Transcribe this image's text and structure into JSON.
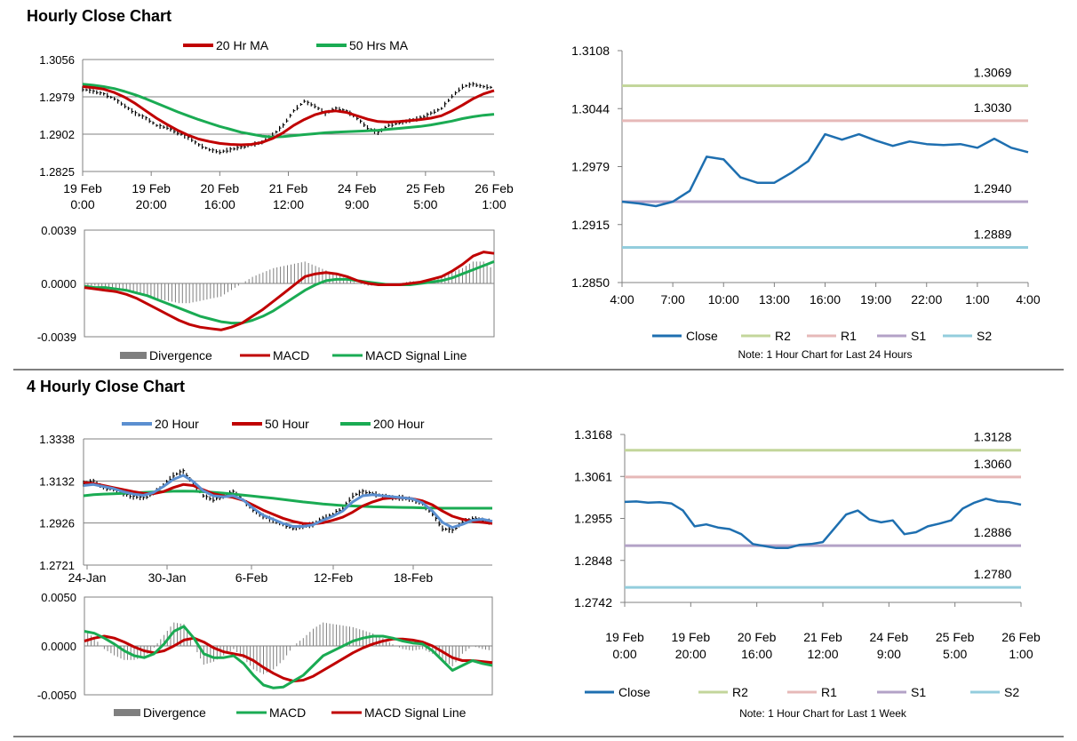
{
  "colors": {
    "black": "#000000",
    "red": "#c00000",
    "green": "#1aab53",
    "blue": "#1e6fb0",
    "lightblue": "#5b8fd0",
    "grey": "#7f7f7f",
    "r2": "#c3d69b",
    "r1": "#e6b9b8",
    "s1": "#b3a2c7",
    "s2": "#93cddd",
    "divider": "#7f7f7f"
  },
  "sections": {
    "top": {
      "title": "Hourly Close Chart"
    },
    "bottom": {
      "title": "4 Hourly Close Chart"
    }
  },
  "chart_data": [
    {
      "id": "hourly-price",
      "type": "line",
      "title": "Hourly Close Chart",
      "ylim": [
        1.2825,
        1.3056
      ],
      "yticks": [
        "1.3056",
        "1.2979",
        "1.2902",
        "1.2825"
      ],
      "xticks": [
        [
          "19 Feb",
          "0:00"
        ],
        [
          "19 Feb",
          "20:00"
        ],
        [
          "20 Feb",
          "16:00"
        ],
        [
          "21 Feb",
          "12:00"
        ],
        [
          "24 Feb",
          "9:00"
        ],
        [
          "25 Feb",
          "5:00"
        ],
        [
          "26 Feb",
          "1:00"
        ]
      ],
      "legend": [
        "20 Hr MA",
        "50 Hrs MA"
      ],
      "legend_position": "top",
      "price": [
        1.2995,
        1.299,
        1.2985,
        1.2975,
        1.296,
        1.2945,
        1.2935,
        1.292,
        1.2915,
        1.2905,
        1.2895,
        1.288,
        1.287,
        1.2865,
        1.287,
        1.2875,
        1.288,
        1.2885,
        1.29,
        1.292,
        1.295,
        1.297,
        1.296,
        1.2945,
        1.2955,
        1.295,
        1.2935,
        1.2915,
        1.2905,
        1.292,
        1.2925,
        1.293,
        1.2935,
        1.2945,
        1.2955,
        1.298,
        1.3,
        1.3005,
        1.3,
        1.2998
      ],
      "ma20": [
        1.3,
        1.2998,
        1.2995,
        1.2988,
        1.2978,
        1.2965,
        1.295,
        1.2935,
        1.2922,
        1.291,
        1.29,
        1.2892,
        1.2887,
        1.2883,
        1.2881,
        1.288,
        1.2881,
        1.2885,
        1.2893,
        1.2905,
        1.292,
        1.2932,
        1.2942,
        1.2948,
        1.295,
        1.2947,
        1.294,
        1.2933,
        1.2928,
        1.2927,
        1.2928,
        1.293,
        1.2932,
        1.2935,
        1.294,
        1.295,
        1.2962,
        1.2975,
        1.2985,
        1.2992
      ],
      "ma50": [
        1.3005,
        1.3003,
        1.3,
        1.2996,
        1.299,
        1.2983,
        1.2975,
        1.2966,
        1.2957,
        1.2948,
        1.294,
        1.2932,
        1.2925,
        1.2918,
        1.2912,
        1.2906,
        1.2902,
        1.2898,
        1.2896,
        1.2897,
        1.2899,
        1.2901,
        1.2903,
        1.2905,
        1.2906,
        1.2907,
        1.2908,
        1.2909,
        1.291,
        1.2912,
        1.2914,
        1.2916,
        1.2918,
        1.2921,
        1.2925,
        1.2929,
        1.2934,
        1.2938,
        1.2941,
        1.2943
      ]
    },
    {
      "id": "hourly-macd",
      "type": "line",
      "ylim": [
        -0.0039,
        0.0039
      ],
      "yticks": [
        "0.0039",
        "0.0000",
        "-0.0039"
      ],
      "legend": [
        "Divergence",
        "MACD",
        "MACD Signal Line"
      ],
      "legend_position": "bottom",
      "macd": [
        -0.0003,
        -0.0004,
        -0.0005,
        -0.0006,
        -0.0008,
        -0.0011,
        -0.0015,
        -0.0019,
        -0.0023,
        -0.0027,
        -0.003,
        -0.0032,
        -0.0033,
        -0.0034,
        -0.0032,
        -0.0029,
        -0.0024,
        -0.0019,
        -0.0013,
        -0.0007,
        -0.0001,
        0.0005,
        0.0007,
        0.0008,
        0.0007,
        0.0005,
        0.0002,
        0.0,
        -0.0001,
        -0.0001,
        -0.0001,
        0.0,
        0.0001,
        0.0003,
        0.0005,
        0.0009,
        0.0014,
        0.002,
        0.0023,
        0.0022
      ],
      "signal": [
        -0.0002,
        -0.0003,
        -0.0003,
        -0.0004,
        -0.0005,
        -0.0007,
        -0.0009,
        -0.0012,
        -0.0015,
        -0.0018,
        -0.0021,
        -0.0024,
        -0.0026,
        -0.0028,
        -0.0029,
        -0.0029,
        -0.0027,
        -0.0024,
        -0.002,
        -0.0015,
        -0.001,
        -0.0005,
        -0.0001,
        0.0002,
        0.0003,
        0.0003,
        0.0002,
        0.0001,
        0.0,
        -0.0001,
        -0.0001,
        -0.0001,
        0.0,
        0.0001,
        0.0002,
        0.0004,
        0.0007,
        0.001,
        0.0013,
        0.0016
      ]
    },
    {
      "id": "hourly-levels",
      "type": "line",
      "ylim": [
        1.285,
        1.3108
      ],
      "yticks": [
        "1.3108",
        "1.3044",
        "1.2979",
        "1.2915",
        "1.2850"
      ],
      "xticks": [
        "4:00",
        "7:00",
        "10:00",
        "13:00",
        "16:00",
        "19:00",
        "22:00",
        "1:00",
        "4:00"
      ],
      "close": [
        1.294,
        1.2938,
        1.2935,
        1.294,
        1.2952,
        1.299,
        1.2987,
        1.2967,
        1.2961,
        1.2961,
        1.2972,
        1.2985,
        1.3015,
        1.3009,
        1.3015,
        1.3008,
        1.3002,
        1.3007,
        1.3004,
        1.3003,
        1.3004,
        1.3,
        1.301,
        1.3,
        1.2995
      ],
      "levels": [
        {
          "name": "R2",
          "value": 1.3069,
          "label": "1.3069"
        },
        {
          "name": "R1",
          "value": 1.303,
          "label": "1.3030"
        },
        {
          "name": "S1",
          "value": 1.294,
          "label": "1.2940"
        },
        {
          "name": "S2",
          "value": 1.2889,
          "label": "1.2889"
        }
      ],
      "legend": [
        "Close",
        "R2",
        "R1",
        "S1",
        "S2"
      ],
      "note": "Note: 1 Hour Chart for Last 24 Hours"
    },
    {
      "id": "four-hourly-price",
      "type": "line",
      "title": "4 Hourly Close Chart",
      "ylim": [
        1.2721,
        1.3338
      ],
      "yticks": [
        "1.3338",
        "1.3132",
        "1.2926",
        "1.2721"
      ],
      "xticks": [
        "24-Jan",
        "30-Jan",
        "6-Feb",
        "12-Feb",
        "18-Feb"
      ],
      "legend": [
        "20 Hour",
        "50 Hour",
        "200 Hour"
      ],
      "legend_position": "top",
      "price": [
        1.312,
        1.313,
        1.31,
        1.309,
        1.307,
        1.3055,
        1.305,
        1.307,
        1.311,
        1.316,
        1.318,
        1.312,
        1.306,
        1.304,
        1.306,
        1.308,
        1.304,
        1.299,
        1.296,
        1.294,
        1.292,
        1.29,
        1.291,
        1.292,
        1.295,
        1.297,
        1.3,
        1.306,
        1.308,
        1.307,
        1.306,
        1.305,
        1.305,
        1.304,
        1.302,
        1.297,
        1.29,
        1.289,
        1.293,
        1.295,
        1.294,
        1.293
      ],
      "ma20": [
        1.311,
        1.3115,
        1.3105,
        1.3095,
        1.308,
        1.3068,
        1.3062,
        1.3075,
        1.3105,
        1.314,
        1.316,
        1.313,
        1.3085,
        1.306,
        1.3055,
        1.306,
        1.304,
        1.3,
        1.2965,
        1.2945,
        1.2925,
        1.291,
        1.291,
        1.2918,
        1.294,
        1.296,
        1.2985,
        1.303,
        1.306,
        1.3065,
        1.306,
        1.3055,
        1.305,
        1.3045,
        1.3025,
        1.2985,
        1.293,
        1.2905,
        1.292,
        1.294,
        1.2945,
        1.2935
      ],
      "ma50": [
        1.3125,
        1.312,
        1.311,
        1.31,
        1.309,
        1.308,
        1.3072,
        1.307,
        1.308,
        1.31,
        1.3115,
        1.311,
        1.309,
        1.307,
        1.306,
        1.3052,
        1.3038,
        1.3015,
        1.299,
        1.297,
        1.295,
        1.2935,
        1.2925,
        1.2922,
        1.2928,
        1.294,
        1.2955,
        1.298,
        1.301,
        1.303,
        1.3045,
        1.305,
        1.305,
        1.3045,
        1.3035,
        1.3015,
        1.2985,
        1.296,
        1.2945,
        1.2935,
        1.293,
        1.2925
      ],
      "ma200": [
        1.306,
        1.3065,
        1.3068,
        1.307,
        1.3072,
        1.3074,
        1.3076,
        1.3078,
        1.308,
        1.3082,
        1.3083,
        1.3082,
        1.308,
        1.3077,
        1.3073,
        1.3068,
        1.3063,
        1.3058,
        1.3053,
        1.3048,
        1.3042,
        1.3036,
        1.303,
        1.3025,
        1.302,
        1.3016,
        1.3012,
        1.301,
        1.3008,
        1.3006,
        1.3005,
        1.3004,
        1.3003,
        1.3002,
        1.3001,
        1.3,
        1.2999,
        1.2999,
        1.2999,
        1.2999,
        1.2999,
        1.2999
      ]
    },
    {
      "id": "four-hourly-macd",
      "type": "line",
      "ylim": [
        -0.005,
        0.005
      ],
      "yticks": [
        "0.0050",
        "0.0000",
        "-0.0050"
      ],
      "legend": [
        "Divergence",
        "MACD",
        "MACD Signal Line"
      ],
      "legend_position": "bottom",
      "macd": [
        0.0015,
        0.0013,
        0.0008,
        0.0002,
        -0.0005,
        -0.001,
        -0.0012,
        -0.0008,
        0.0002,
        0.0015,
        0.002,
        0.0008,
        -0.0008,
        -0.0012,
        -0.0012,
        -0.001,
        -0.0018,
        -0.003,
        -0.004,
        -0.0043,
        -0.0042,
        -0.0036,
        -0.003,
        -0.002,
        -0.001,
        -0.0005,
        0.0,
        0.0005,
        0.0008,
        0.001,
        0.001,
        0.0008,
        0.0005,
        0.0003,
        0.0002,
        -0.0005,
        -0.0015,
        -0.0025,
        -0.002,
        -0.0015,
        -0.0018,
        -0.002
      ],
      "signal": [
        0.0005,
        0.0008,
        0.001,
        0.0008,
        0.0004,
        -0.0001,
        -0.0005,
        -0.0007,
        -0.0005,
        0.0,
        0.0006,
        0.0008,
        0.0004,
        -0.0002,
        -0.0006,
        -0.0008,
        -0.001,
        -0.0015,
        -0.0022,
        -0.0028,
        -0.0033,
        -0.0036,
        -0.0035,
        -0.0031,
        -0.0025,
        -0.0019,
        -0.0013,
        -0.0007,
        -0.0002,
        0.0002,
        0.0005,
        0.0007,
        0.0007,
        0.0006,
        0.0004,
        0.0,
        -0.0006,
        -0.0012,
        -0.0015,
        -0.0015,
        -0.0016,
        -0.0017
      ]
    },
    {
      "id": "four-hourly-levels",
      "type": "line",
      "ylim": [
        1.2742,
        1.3168
      ],
      "yticks": [
        "1.3168",
        "1.3061",
        "1.2955",
        "1.2848",
        "1.2742"
      ],
      "xticks": [
        [
          "19 Feb",
          "0:00"
        ],
        [
          "19 Feb",
          "20:00"
        ],
        [
          "20 Feb",
          "16:00"
        ],
        [
          "21 Feb",
          "12:00"
        ],
        [
          "24 Feb",
          "9:00"
        ],
        [
          "25 Feb",
          "5:00"
        ],
        [
          "26 Feb",
          "1:00"
        ]
      ],
      "close": [
        1.2997,
        1.2998,
        1.2995,
        1.2996,
        1.2993,
        1.2975,
        1.2935,
        1.294,
        1.2932,
        1.2928,
        1.2915,
        1.289,
        1.2885,
        1.288,
        1.288,
        1.2888,
        1.289,
        1.2895,
        1.293,
        1.2965,
        1.2975,
        1.2952,
        1.2945,
        1.295,
        1.2915,
        1.292,
        1.2935,
        1.2942,
        1.295,
        1.298,
        1.2995,
        1.3005,
        1.2998,
        1.2996,
        1.299
      ],
      "levels": [
        {
          "name": "R2",
          "value": 1.3128,
          "label": "1.3128"
        },
        {
          "name": "R1",
          "value": 1.306,
          "label": "1.3060"
        },
        {
          "name": "S1",
          "value": 1.2886,
          "label": "1.2886"
        },
        {
          "name": "S2",
          "value": 1.278,
          "label": "1.2780"
        }
      ],
      "legend": [
        "Close",
        "R2",
        "R1",
        "S1",
        "S2"
      ],
      "note": "Note: 1 Hour Chart for Last 1 Week"
    }
  ]
}
